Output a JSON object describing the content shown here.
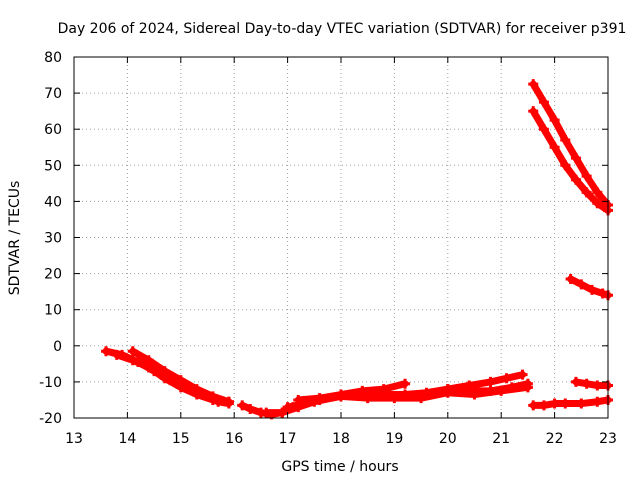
{
  "chart_data": {
    "type": "scatter",
    "title": "Day 206 of 2024, Sidereal Day-to-day VTEC variation (SDTVAR) for receiver p391",
    "xlabel": "GPS time / hours",
    "ylabel": "SDTVAR / TECUs",
    "xlim": [
      13,
      23
    ],
    "ylim": [
      -20,
      80
    ],
    "xticks": [
      "13",
      "14",
      "15",
      "16",
      "17",
      "18",
      "19",
      "20",
      "21",
      "22",
      "23"
    ],
    "yticks": [
      "-20",
      "-10",
      "0",
      "10",
      "20",
      "30",
      "40",
      "50",
      "60",
      "70",
      "80"
    ],
    "grid": true,
    "legend": "none",
    "series_color": "#ff0000",
    "series": [
      {
        "x": [
          13.6,
          13.9,
          14.2,
          14.5,
          14.8,
          15.1,
          15.4,
          15.7,
          15.9
        ],
        "y": [
          -1.5,
          -2.5,
          -4.5,
          -7,
          -9.5,
          -11.5,
          -13.5,
          -15.5,
          -16
        ]
      },
      {
        "x": [
          13.8,
          14.1,
          14.4,
          14.7,
          15.0,
          15.3,
          15.6,
          15.9
        ],
        "y": [
          -2.5,
          -4,
          -6,
          -9,
          -11.5,
          -13.5,
          -15,
          -15.5
        ]
      },
      {
        "x": [
          14.1,
          14.4,
          14.7,
          15.0,
          15.3,
          15.6,
          15.9
        ],
        "y": [
          -1.5,
          -4,
          -7,
          -9.5,
          -12,
          -14,
          -15.5
        ]
      },
      {
        "x": [
          16.15,
          16.3,
          16.5,
          16.7,
          16.9,
          17.1
        ],
        "y": [
          -16.5,
          -17.5,
          -18.5,
          -19,
          -18.5,
          -17
        ]
      },
      {
        "x": [
          16.6,
          16.9,
          17.2,
          17.6,
          18.0,
          18.4,
          18.8,
          19.2,
          19.6,
          20.0,
          20.4,
          20.8,
          21.1,
          21.4
        ],
        "y": [
          -18.5,
          -18.5,
          -17,
          -15,
          -14,
          -13.5,
          -13.5,
          -13.5,
          -13,
          -12,
          -11,
          -10,
          -9,
          -8
        ]
      },
      {
        "x": [
          17.2,
          17.6,
          18.0,
          18.4,
          18.8,
          19.2
        ],
        "y": [
          -15,
          -14.5,
          -13.5,
          -12.5,
          -12,
          -10.5
        ]
      },
      {
        "x": [
          17.0,
          17.5,
          18.0,
          18.5,
          19.0,
          19.5,
          20.0,
          20.5,
          21.0,
          21.5
        ],
        "y": [
          -17,
          -15.5,
          -14,
          -14.5,
          -14.5,
          -14.5,
          -13,
          -13.5,
          -12.5,
          -11.5
        ]
      },
      {
        "x": [
          20.0,
          20.4,
          20.8,
          21.2,
          21.5
        ],
        "y": [
          -12,
          -12.5,
          -12.5,
          -11.5,
          -10.5
        ]
      },
      {
        "x": [
          21.6,
          21.8,
          22.0,
          22.2,
          22.4,
          22.6,
          22.8,
          23.0
        ],
        "y": [
          72.5,
          67.5,
          62.5,
          57,
          52,
          47,
          42.5,
          39
        ]
      },
      {
        "x": [
          21.6,
          21.8,
          22.0,
          22.2,
          22.4,
          22.6,
          22.8,
          23.0
        ],
        "y": [
          65,
          60,
          55,
          50,
          46,
          42.5,
          39.5,
          37.5
        ]
      },
      {
        "x": [
          22.3,
          22.5,
          22.7,
          22.9,
          23.0
        ],
        "y": [
          18.5,
          17,
          15.5,
          14.5,
          14
        ]
      },
      {
        "x": [
          21.6,
          21.8,
          22.0,
          22.2,
          22.5,
          22.8,
          23.0
        ],
        "y": [
          -16.5,
          -16.5,
          -16,
          -16,
          -16,
          -15.5,
          -15
        ]
      },
      {
        "x": [
          22.4,
          22.6,
          22.8,
          23.0
        ],
        "y": [
          -10,
          -10.5,
          -11,
          -11
        ]
      }
    ]
  }
}
